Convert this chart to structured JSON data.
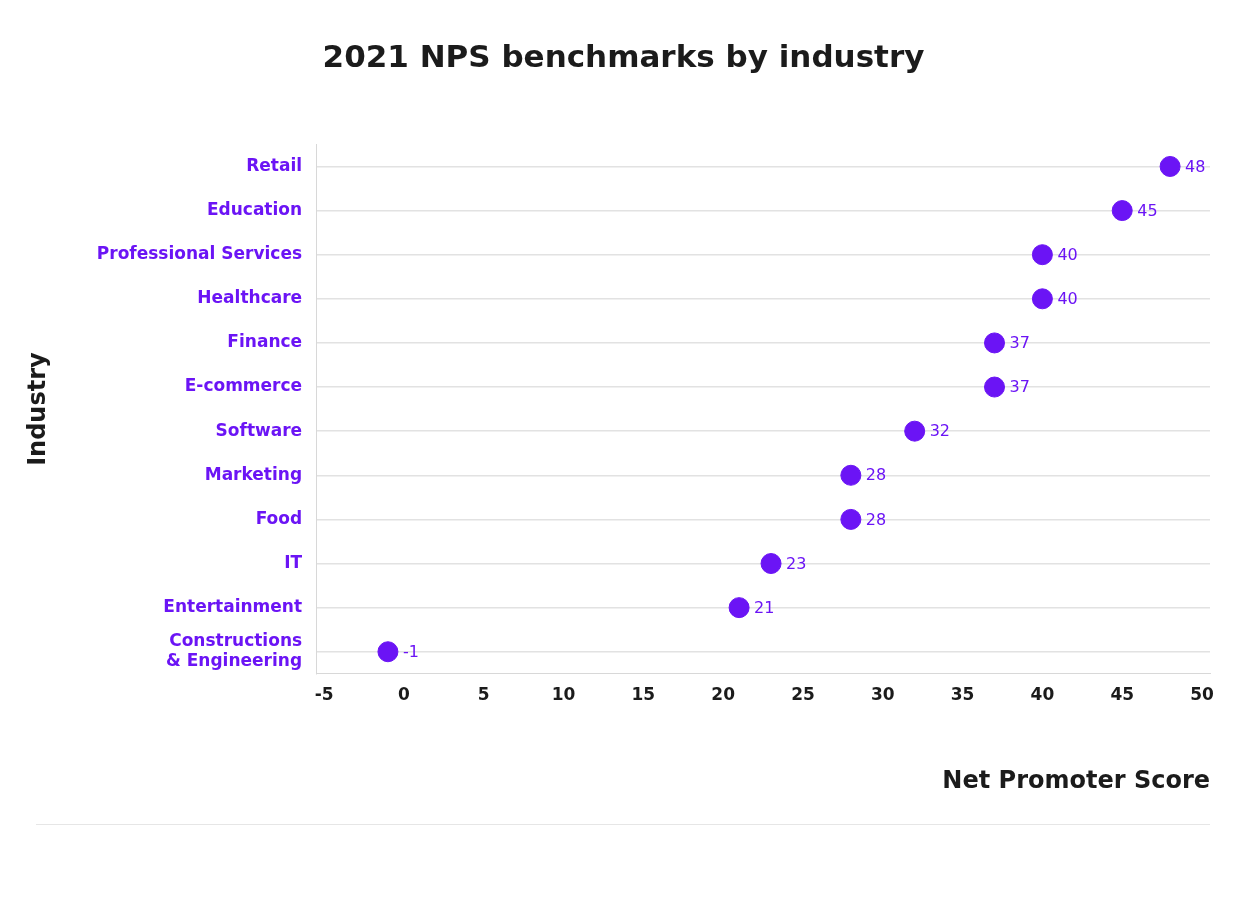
{
  "chart_data": {
    "type": "scatter",
    "orientation": "horizontal",
    "title": "2021 NPS benchmarks by industry",
    "xlabel": "Net Promoter Score",
    "ylabel": "Industry",
    "categories": [
      "Retail",
      "Education",
      "Professional Services",
      "Healthcare",
      "Finance",
      "E-commerce",
      "Software",
      "Marketing",
      "Food",
      "IT",
      "Entertainment",
      "Constructions & Engineering"
    ],
    "values": [
      48,
      45,
      40,
      40,
      37,
      37,
      32,
      28,
      28,
      23,
      21,
      -1
    ],
    "color": "#6b14f5",
    "xlim": [
      -5.5,
      50.5
    ],
    "xticks": [
      -5,
      0,
      5,
      10,
      15,
      20,
      25,
      30,
      35,
      40,
      45,
      50
    ],
    "grid": "y",
    "legend": false,
    "marker": "circle",
    "data_labels": true
  }
}
